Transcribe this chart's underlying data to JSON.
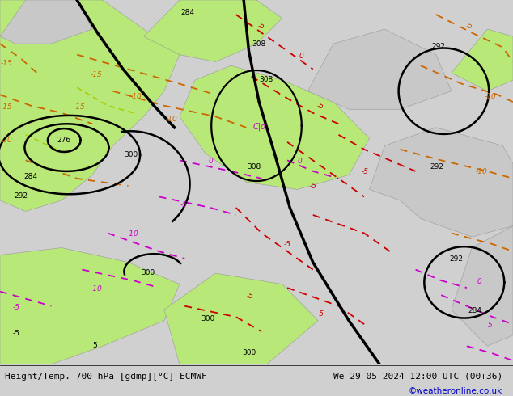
{
  "title_left": "Height/Temp. 700 hPa [gdmp][°C] ECMWF",
  "title_right": "We 29-05-2024 12:00 UTC (00+36)",
  "credit": "©weatheronline.co.uk",
  "bg_color": "#d0d0d0",
  "land_green_color": "#b8e878",
  "land_gray_color": "#c8c8c8",
  "height_contour_color": "#000000",
  "temp_neg_color_dark": "#cc0000",
  "temp_pos_color": "#cc6600",
  "magenta_color": "#cc00cc",
  "yellow_green_color": "#aacc00"
}
